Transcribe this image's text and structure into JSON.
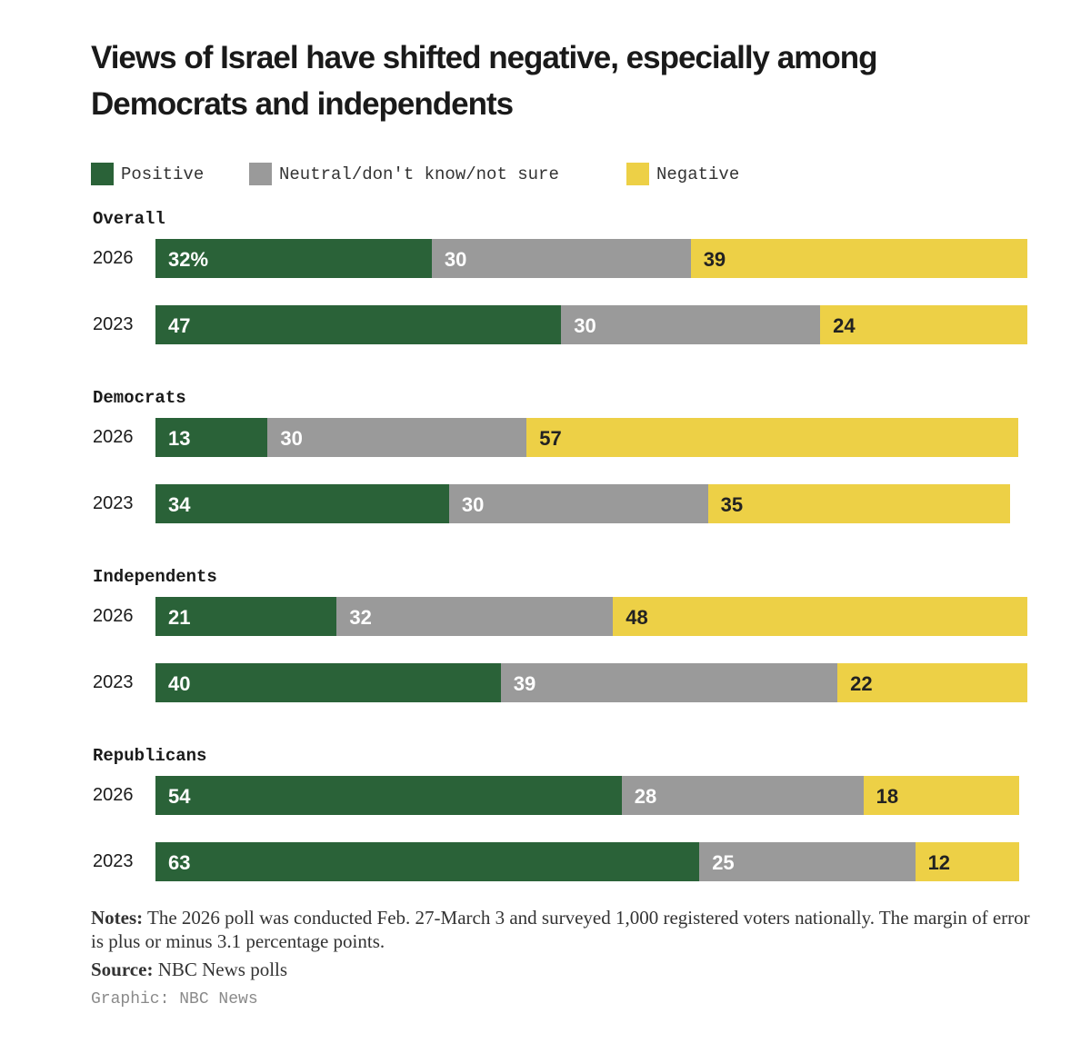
{
  "colors": {
    "positive": "#2a6238",
    "neutral": "#9a9a9a",
    "negative": "#edd046",
    "positive_text": "#ffffff",
    "neutral_text": "#ffffff",
    "negative_text": "#222222"
  },
  "chart_data": {
    "type": "bar",
    "orientation": "horizontal",
    "stacked": true,
    "title": "Views of Israel have shifted negative, especially among Democrats and independents",
    "legend": [
      {
        "key": "positive",
        "label": "Positive"
      },
      {
        "key": "neutral",
        "label": "Neutral/don't know/not sure"
      },
      {
        "key": "negative",
        "label": "Negative"
      }
    ],
    "legend_position": "top-left",
    "groups": [
      {
        "name": "Overall",
        "rows": [
          {
            "year": "2026",
            "positive": 32,
            "neutral": 30,
            "negative": 39,
            "positive_label": "32%",
            "neutral_label": "30",
            "negative_label": "39"
          },
          {
            "year": "2023",
            "positive": 47,
            "neutral": 30,
            "negative": 24,
            "positive_label": "47",
            "neutral_label": "30",
            "negative_label": "24"
          }
        ]
      },
      {
        "name": "Democrats",
        "rows": [
          {
            "year": "2026",
            "positive": 13,
            "neutral": 30,
            "negative": 57,
            "positive_label": "13",
            "neutral_label": "30",
            "negative_label": "57"
          },
          {
            "year": "2023",
            "positive": 34,
            "neutral": 30,
            "negative": 35,
            "positive_label": "34",
            "neutral_label": "30",
            "negative_label": "35"
          }
        ]
      },
      {
        "name": "Independents",
        "rows": [
          {
            "year": "2026",
            "positive": 21,
            "neutral": 32,
            "negative": 48,
            "positive_label": "21",
            "neutral_label": "32",
            "negative_label": "48"
          },
          {
            "year": "2023",
            "positive": 40,
            "neutral": 39,
            "negative": 22,
            "positive_label": "40",
            "neutral_label": "39",
            "negative_label": "22"
          }
        ]
      },
      {
        "name": "Republicans",
        "rows": [
          {
            "year": "2026",
            "positive": 54,
            "neutral": 28,
            "negative": 18,
            "positive_label": "54",
            "neutral_label": "28",
            "negative_label": "18"
          },
          {
            "year": "2023",
            "positive": 63,
            "neutral": 25,
            "negative": 12,
            "positive_label": "63",
            "neutral_label": "25",
            "negative_label": "12"
          }
        ]
      }
    ],
    "scale_max": 101
  },
  "notes": {
    "label": "Notes:",
    "text": " The 2026 poll was conducted Feb. 27-March 3 and surveyed 1,000 registered voters nationally. The margin of error is plus or minus 3.1 percentage points."
  },
  "source": {
    "label": "Source:",
    "text": " NBC News polls"
  },
  "credit": "Graphic: NBC News"
}
